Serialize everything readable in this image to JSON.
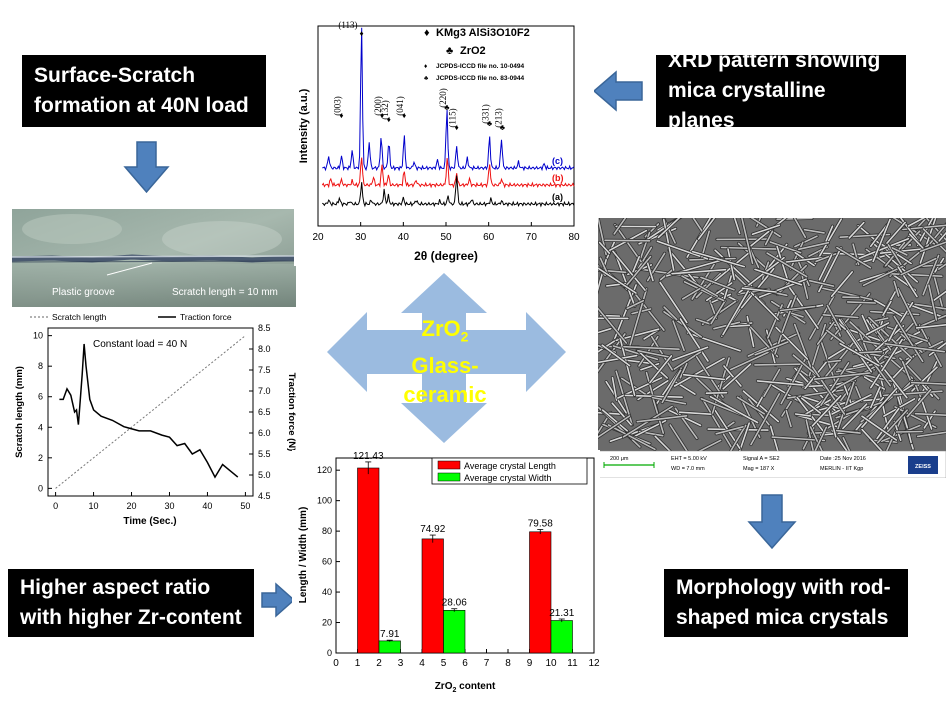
{
  "labels": {
    "scratch": "Surface-Scratch\nformation at 40N load",
    "xrd": "XRD pattern showing\nmica crystalline planes",
    "aspect": "Higher aspect ratio\nwith higher Zr-content",
    "morph": "Morphology with rod-\nshaped mica crystals",
    "center_zr": "ZrO",
    "center_sub": "2",
    "center_glass": "Glass-",
    "center_ceramic": "ceramic"
  },
  "photo": {
    "groove_label": "Plastic groove",
    "length_label": "Scratch length = 10 mm"
  },
  "sem": {
    "scale": "200 μm",
    "eht": "EHT = 5.00 kV",
    "wd": "WD = 7.0 mm",
    "signal": "Signal A = SE2",
    "mag": "Mag = 187 X",
    "date": "Date :25 Nov 2016",
    "inst": "MERLIN - IIT Kgp",
    "brand": "ZEISS"
  },
  "colors": {
    "arrow_blue": "#4f81bd",
    "center_arrow": "#9bbbe0",
    "center_text": "#ffff00",
    "bar_red": "#ff0000",
    "bar_green": "#00ff00"
  },
  "chart_data": [
    {
      "type": "line",
      "title": "Constant load = 40 N",
      "xlabel": "Time (Sec.)",
      "ylabel": "Scratch length (mm)",
      "y2label": "Traction force (N)",
      "xticks": [
        "0",
        "10",
        "20",
        "30",
        "40",
        "50"
      ],
      "yticks": [
        "0",
        "2",
        "4",
        "6",
        "8",
        "10"
      ],
      "y2ticks": [
        "4.5",
        "5.0",
        "5.5",
        "6.0",
        "6.5",
        "7.0",
        "7.5",
        "8.0",
        "8.5"
      ],
      "xlim": [
        -2,
        52
      ],
      "ylim": [
        -0.5,
        10.5
      ],
      "y2lim": [
        4.5,
        8.5
      ],
      "series": [
        {
          "name": "Scratch length",
          "axis": "left",
          "style": "dotted",
          "x": [
            0,
            50
          ],
          "y": [
            0,
            10
          ]
        },
        {
          "name": "Traction force",
          "axis": "right",
          "style": "solid",
          "x": [
            1,
            2,
            3,
            4,
            5,
            5.5,
            6,
            6.5,
            7,
            7.5,
            8,
            9,
            10,
            12,
            15,
            18,
            22,
            25,
            28,
            30,
            32,
            34,
            36,
            38,
            40,
            42,
            44,
            46,
            48
          ],
          "y": [
            6.8,
            6.8,
            7.05,
            6.9,
            6.5,
            6.55,
            6.2,
            6.8,
            7.4,
            8.12,
            7.6,
            6.8,
            6.55,
            6.4,
            6.3,
            6.15,
            6.05,
            6.05,
            5.95,
            5.9,
            5.7,
            5.75,
            5.5,
            5.6,
            5.3,
            4.95,
            5.25,
            5.1,
            4.95
          ]
        }
      ]
    },
    {
      "type": "line",
      "xlabel": "2θ (degree)",
      "ylabel": "Intensity (a.u.)",
      "xticks": [
        "20",
        "30",
        "40",
        "50",
        "60",
        "70",
        "80"
      ],
      "xlim": [
        20,
        80
      ],
      "legend": [
        {
          "symbol": "♦",
          "text": "KMg3 AlSi3O10F2"
        },
        {
          "symbol": "♣",
          "text": "ZrO2"
        },
        {
          "symbol": "♦",
          "text": "JCPDS-ICCD file no. 10-0494"
        },
        {
          "symbol": "♣",
          "text": "JCPDS-ICCD file no. 83-0944"
        }
      ],
      "peak_labels": [
        "(113)",
        "(003)",
        "(200)",
        "(132)",
        "(041)",
        "(220)",
        "(115)",
        "(331)",
        "(213)"
      ],
      "peak_positions": [
        30.2,
        25.5,
        35.0,
        36.6,
        40.2,
        50.2,
        52.5,
        60.2,
        63.2
      ],
      "series": [
        {
          "name": "(c)",
          "color": "#0000cc"
        },
        {
          "name": "(b)",
          "color": "#ee1111"
        },
        {
          "name": "(a)",
          "color": "#000000"
        }
      ]
    },
    {
      "type": "bar",
      "xlabel": "ZrO2 content",
      "ylabel": "Length / Width (mm)",
      "xticks": [
        "0",
        "1",
        "2",
        "3",
        "4",
        "5",
        "6",
        "7",
        "8",
        "9",
        "10",
        "11",
        "12"
      ],
      "yticks": [
        "0",
        "20",
        "40",
        "60",
        "80",
        "100",
        "120"
      ],
      "xlim": [
        0,
        12
      ],
      "ylim": [
        0,
        128
      ],
      "series": [
        {
          "name": "Average crystal Length",
          "color": "#ff0000",
          "x": [
            1.5,
            4.5,
            9.5
          ],
          "values": [
            121.43,
            74.92,
            79.58
          ],
          "labels": [
            "121.43",
            "74.92",
            "79.58"
          ],
          "err": [
            4,
            2.5,
            1.5
          ]
        },
        {
          "name": "Average crystal Width",
          "color": "#00ff00",
          "x": [
            2.5,
            5.5,
            10.5
          ],
          "values": [
            7.91,
            28.06,
            21.31
          ],
          "labels": [
            "7.91",
            "28.06",
            "21.31"
          ],
          "err": [
            0.5,
            1,
            1
          ]
        }
      ]
    }
  ]
}
